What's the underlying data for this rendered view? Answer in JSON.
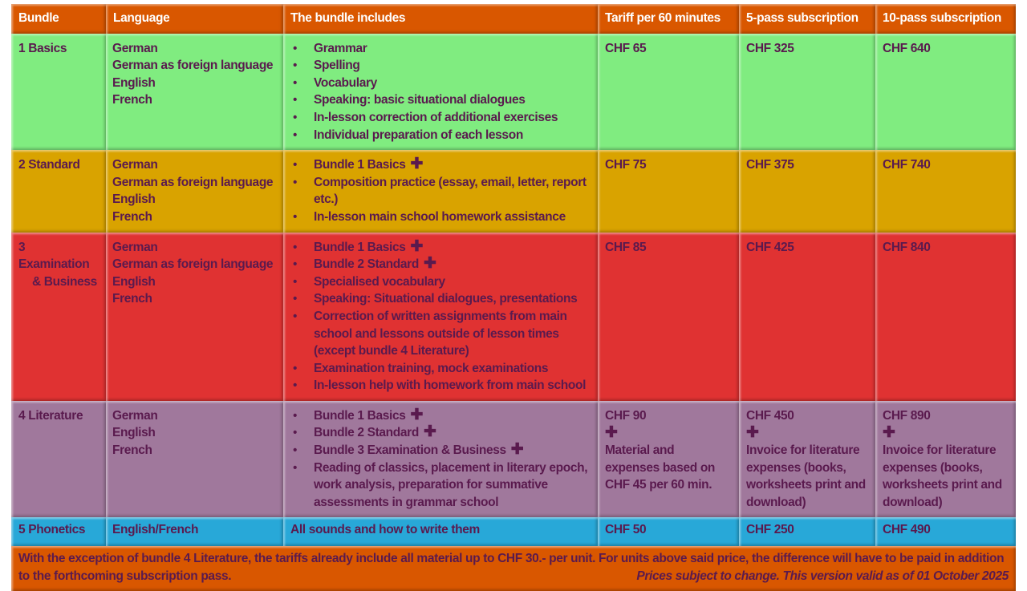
{
  "headers": [
    "Bundle",
    "Language",
    "The bundle includes",
    "Tariff per 60 minutes",
    "5-pass subscription",
    "10-pass subscription"
  ],
  "colors": {
    "header": "#d95700",
    "basics": "#80ec80",
    "standard": "#d9a300",
    "examination": "#e03232",
    "literature": "#a0789c",
    "phonetics": "#28a8d8",
    "text": "#5a1a4e"
  },
  "rows": [
    {
      "bundle": [
        "1 Basics"
      ],
      "languages": [
        "German",
        "German as foreign language",
        "English",
        "French"
      ],
      "includes": [
        {
          "text": "Grammar"
        },
        {
          "text": "Spelling"
        },
        {
          "text": "Vocabulary"
        },
        {
          "text": "Speaking: basic situational dialogues"
        },
        {
          "text": "In-lesson correction of additional exercises"
        },
        {
          "text": "Individual preparation of each lesson"
        }
      ],
      "tariff": {
        "price": "CHF 65"
      },
      "pass5": {
        "price": "CHF 325"
      },
      "pass10": {
        "price": "CHF 640"
      }
    },
    {
      "bundle": [
        "2 Standard"
      ],
      "languages": [
        "German",
        "German as foreign language",
        "English",
        "French"
      ],
      "includes": [
        {
          "text": "Bundle 1 Basics",
          "plus": "✚"
        },
        {
          "text": "Composition practice (essay, email, letter, report etc.)"
        },
        {
          "text": "In-lesson main school homework assistance"
        }
      ],
      "tariff": {
        "price": "CHF 75"
      },
      "pass5": {
        "price": "CHF 375"
      },
      "pass10": {
        "price": "CHF 740"
      }
    },
    {
      "bundle": [
        "3",
        "Examination",
        "   & Business"
      ],
      "languages": [
        "German",
        "German as foreign language",
        "English",
        "French"
      ],
      "includes": [
        {
          "text": "Bundle 1 Basics",
          "plus": "✚"
        },
        {
          "text": "Bundle 2 Standard",
          "plus": "✚"
        },
        {
          "text": "Specialised vocabulary"
        },
        {
          "text": "Speaking: Situational dialogues, presentations"
        },
        {
          "text": "Correction of written assignments from main school and lessons outside of lesson times (except bundle 4 Literature)"
        },
        {
          "text": "Examination training, mock examinations"
        },
        {
          "text": "In-lesson help with homework from main school"
        }
      ],
      "tariff": {
        "price": "CHF 85"
      },
      "pass5": {
        "price": "CHF 425"
      },
      "pass10": {
        "price": "CHF 840"
      }
    },
    {
      "bundle": [
        "4 Literature"
      ],
      "languages": [
        "German",
        "English",
        "French"
      ],
      "includes": [
        {
          "text": "Bundle 1 Basics",
          "plus": "✚"
        },
        {
          "text": "Bundle 2 Standard",
          "plus": "✚"
        },
        {
          "text": "Bundle 3 Examination & Business",
          "plus": "✚"
        },
        {
          "text": "Reading of classics, placement in literary epoch, work analysis, preparation for summative assessments in grammar school"
        }
      ],
      "tariff": {
        "price": "CHF 90",
        "plus": "✚",
        "note": "Material and expenses based on CHF 45 per 60 min."
      },
      "pass5": {
        "price": "CHF 450",
        "plus": "✚",
        "note": "Invoice for literature expenses (books, worksheets print and download)"
      },
      "pass10": {
        "price": "CHF 890",
        "plus": "✚",
        "note": "Invoice for literature expenses (books, worksheets print and download)"
      }
    },
    {
      "bundle": [
        "5 Phonetics"
      ],
      "languages": [
        "English/French"
      ],
      "includes_text": "All sounds and how to write them",
      "tariff": {
        "price": "CHF 50"
      },
      "pass5": {
        "price": "CHF 250"
      },
      "pass10": {
        "price": "CHF 490"
      }
    }
  ],
  "footer": {
    "text": "With the exception of bundle 4 Literature, the tariffs already include all material up to CHF 30.- per unit. For units above said price, the difference will have to be paid in addition to the forthcoming subscription pass.",
    "note": "Prices subject to change. This version valid as of 01 October 2025"
  }
}
